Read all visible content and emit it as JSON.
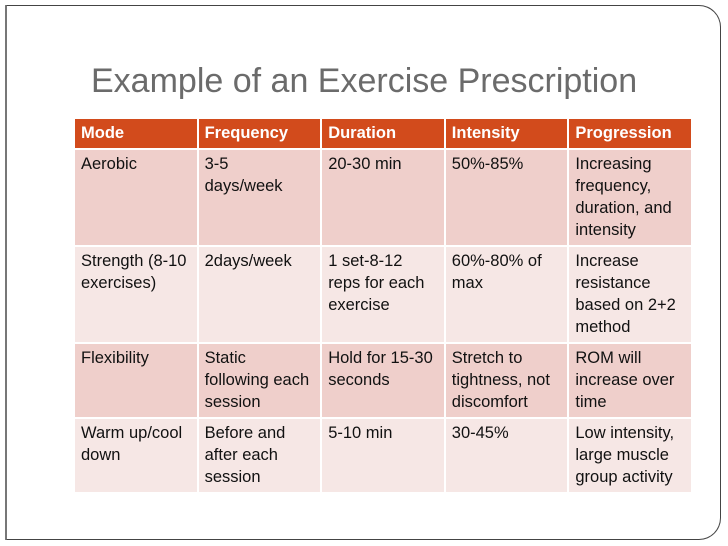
{
  "slide": {
    "title": "Example of an Exercise Prescription",
    "colors": {
      "header": "#D24B1C",
      "row_odd": "#EFCFCB",
      "row_even": "#F6E7E5"
    }
  },
  "table": {
    "headers": [
      "Mode",
      "Frequency",
      "Duration",
      "Intensity",
      "Progression"
    ],
    "rows": [
      [
        "Aerobic",
        "3-5 days/week",
        "20-30 min",
        "50%-85%",
        "Increasing frequency, duration, and intensity"
      ],
      [
        "Strength (8-10 exercises)",
        "2days/week",
        "1 set-8-12 reps for each exercise",
        "60%-80% of max",
        "Increase resistance based on 2+2 method"
      ],
      [
        "Flexibility",
        "Static following each session",
        "Hold for 15-30 seconds",
        "Stretch to tightness, not discomfort",
        "ROM will increase over time"
      ],
      [
        "Warm up/cool down",
        "Before and after each session",
        "5-10 min",
        "30-45%",
        "Low intensity, large muscle group activity"
      ]
    ]
  }
}
